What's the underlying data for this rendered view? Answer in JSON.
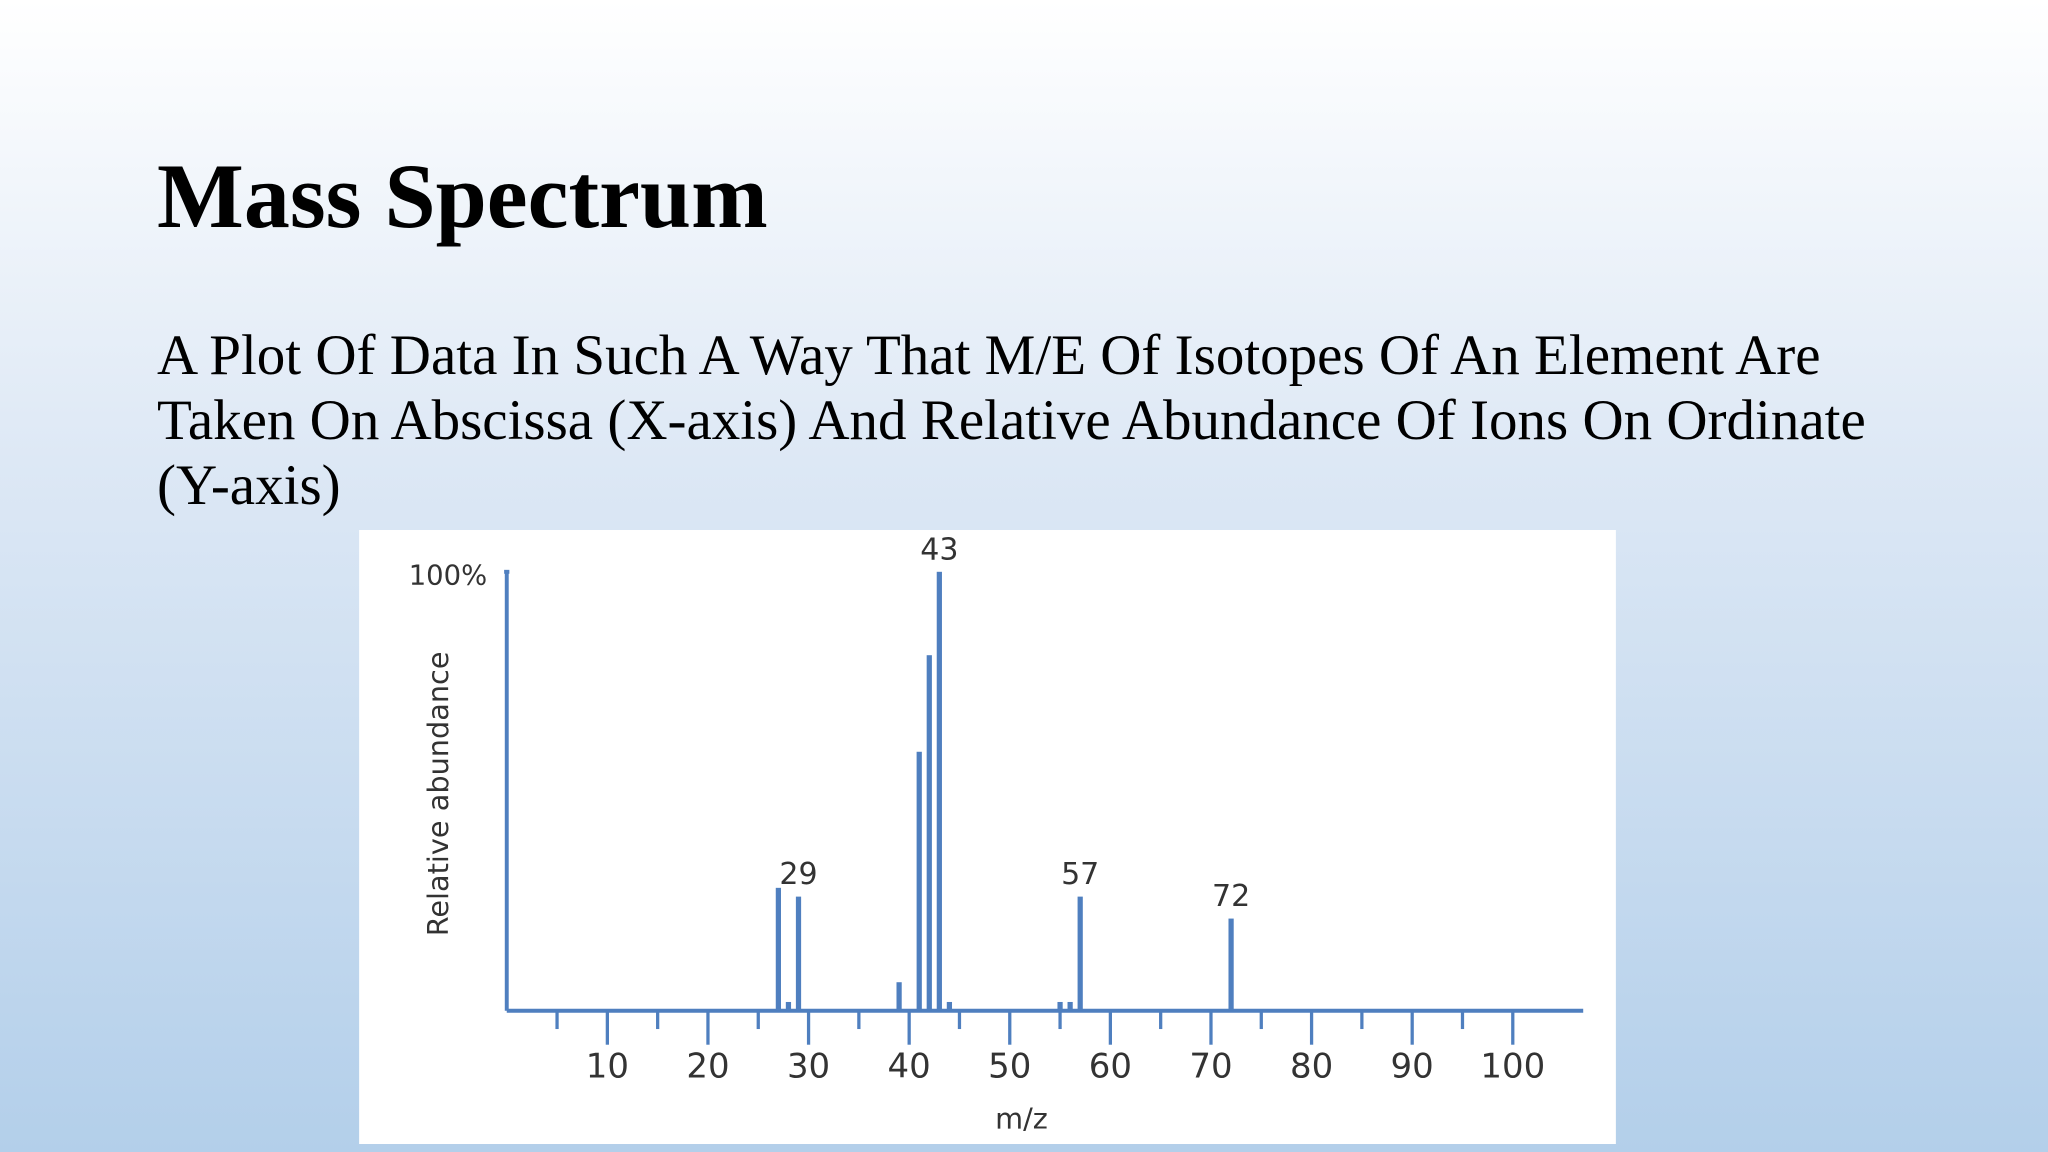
{
  "title": "Mass Spectrum",
  "body": "A Plot Of Data In Such A Way That M/E Of Isotopes Of An Element Are Taken On Abscissa (X-axis) And Relative Abundance Of Ions On Ordinate (Y-axis)",
  "chart_data": {
    "type": "bar",
    "x_label": "m/z",
    "y_label": "Relative abundance",
    "x": [
      27,
      28,
      29,
      39,
      41,
      42,
      43,
      44,
      55,
      56,
      57,
      72
    ],
    "values": [
      28,
      2,
      26,
      6.5,
      59,
      81,
      100,
      2,
      2,
      2,
      26,
      21
    ],
    "color": "#4f7fbf",
    "annotations": [
      29,
      43,
      57,
      72
    ],
    "xlim": [
      0,
      107
    ],
    "xticks": [
      10,
      20,
      30,
      40,
      50,
      60,
      70,
      80,
      90,
      100
    ],
    "xminorticks": [
      5,
      15,
      25,
      35,
      45,
      55,
      65,
      75,
      85,
      95
    ],
    "ylim": [
      0,
      100
    ],
    "yticks": [
      {
        "value": 100,
        "label": "100%"
      }
    ]
  }
}
